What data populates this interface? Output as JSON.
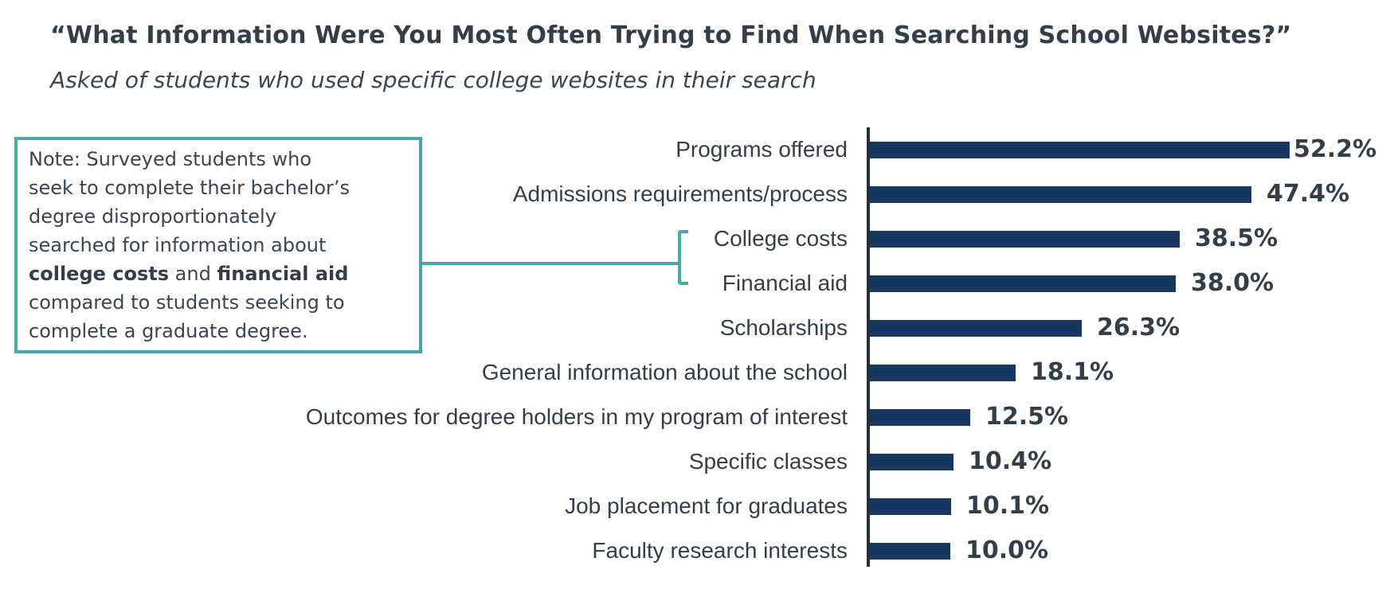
{
  "header": {
    "title": "“What Information Were You Most Often Trying to Find When Searching School Websites?”",
    "subtitle": "Asked of students who used specific college websites in their search"
  },
  "note": {
    "lines": [
      [
        {
          "t": "Note: Surveyed students who",
          "b": false
        }
      ],
      [
        {
          "t": "seek to complete their bachelor’s",
          "b": false
        }
      ],
      [
        {
          "t": "degree disproportionately",
          "b": false
        }
      ],
      [
        {
          "t": "searched for information about",
          "b": false
        }
      ],
      [
        {
          "t": "college costs",
          "b": true
        },
        {
          "t": " and ",
          "b": false
        },
        {
          "t": "financial aid",
          "b": true
        }
      ],
      [
        {
          "t": "compared to students seeking to",
          "b": false
        }
      ],
      [
        {
          "t": "complete a graduate degree.",
          "b": false
        }
      ]
    ],
    "callout_targets": [
      "College costs",
      "Financial aid"
    ]
  },
  "chart_data": {
    "type": "bar",
    "orientation": "horizontal",
    "title": "“What Information Were You Most Often Trying to Find When Searching School Websites?”",
    "subtitle": "Asked of students who used specific college websites in their search",
    "categories": [
      "Programs offered",
      "Admissions requirements/process",
      "College costs",
      "Financial aid",
      "Scholarships",
      "General information about the school",
      "Outcomes for degree holders in my program of interest",
      "Specific classes",
      "Job placement for graduates",
      "Faculty research interests"
    ],
    "values": [
      52.2,
      47.4,
      38.5,
      38.0,
      26.3,
      18.1,
      12.5,
      10.4,
      10.1,
      10.0
    ],
    "value_labels": [
      "52.2%",
      "47.4%",
      "38.5%",
      "26.3%",
      "18.1%",
      "12.5%",
      "10.4%",
      "10.1%",
      "10.0%"
    ],
    "value_labels_full": [
      "52.2%",
      "47.4%",
      "38.5%",
      "38.0%",
      "26.3%",
      "18.1%",
      "12.5%",
      "10.4%",
      "10.1%",
      "10.0%"
    ],
    "xlabel": "",
    "ylabel": "",
    "xlim": [
      0,
      55
    ],
    "grid": false,
    "legend": "none",
    "data_labels": "outside-end"
  },
  "colors": {
    "bar": "#17375E",
    "accent_teal": "#4BA8A4",
    "text": "#333E48",
    "axis": "#272E37",
    "background": "#FFFFFF"
  }
}
